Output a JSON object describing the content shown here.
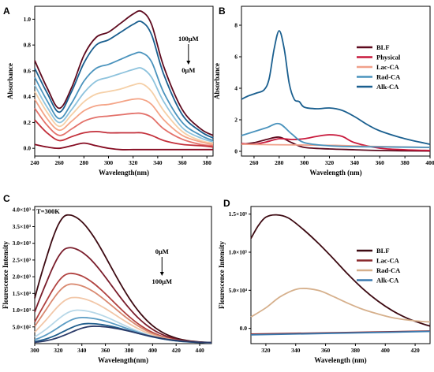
{
  "chart_data": [
    {
      "panel": "A",
      "type": "line",
      "xlabel": "Wavelength(nm)",
      "ylabel": "Absorbance",
      "xlim": [
        240,
        385
      ],
      "ylim": [
        -0.06,
        1.1
      ],
      "xticks": [
        240,
        260,
        280,
        300,
        320,
        340,
        360,
        380
      ],
      "yticks": [
        0.0,
        0.2,
        0.4,
        0.6,
        0.8,
        1.0
      ],
      "ytick_labels": [
        "0.0",
        "0.2",
        "0.4",
        "0.6",
        "0.8",
        "1.0"
      ],
      "annotation_top": "100μM",
      "annotation_bottom": "0μM",
      "x": [
        240,
        250,
        260,
        270,
        280,
        290,
        300,
        310,
        320,
        327,
        335,
        345,
        360,
        375,
        385
      ],
      "series": [
        {
          "color": "#5e0a1e",
          "values": [
            0.68,
            0.47,
            0.31,
            0.47,
            0.72,
            0.86,
            0.9,
            0.97,
            1.04,
            1.06,
            0.96,
            0.63,
            0.3,
            0.15,
            0.1
          ]
        },
        {
          "color": "#1a5f8f",
          "values": [
            0.62,
            0.43,
            0.28,
            0.44,
            0.66,
            0.8,
            0.84,
            0.9,
            0.96,
            0.98,
            0.88,
            0.57,
            0.26,
            0.13,
            0.08
          ]
        },
        {
          "color": "#4a93bd",
          "values": [
            0.55,
            0.37,
            0.23,
            0.35,
            0.52,
            0.62,
            0.65,
            0.69,
            0.73,
            0.74,
            0.67,
            0.43,
            0.2,
            0.1,
            0.06
          ]
        },
        {
          "color": "#8ec3dd",
          "values": [
            0.49,
            0.32,
            0.2,
            0.3,
            0.43,
            0.52,
            0.55,
            0.58,
            0.61,
            0.62,
            0.55,
            0.36,
            0.16,
            0.08,
            0.05
          ]
        },
        {
          "color": "#f5d0a8",
          "values": [
            0.44,
            0.28,
            0.17,
            0.26,
            0.36,
            0.42,
            0.44,
            0.46,
            0.49,
            0.5,
            0.44,
            0.29,
            0.13,
            0.06,
            0.04
          ]
        },
        {
          "color": "#f4a487",
          "values": [
            0.38,
            0.23,
            0.14,
            0.21,
            0.29,
            0.33,
            0.34,
            0.36,
            0.38,
            0.38,
            0.34,
            0.22,
            0.1,
            0.05,
            0.03
          ]
        },
        {
          "color": "#e3716a",
          "values": [
            0.31,
            0.18,
            0.1,
            0.15,
            0.21,
            0.24,
            0.25,
            0.26,
            0.27,
            0.27,
            0.24,
            0.15,
            0.07,
            0.03,
            0.02
          ]
        },
        {
          "color": "#c3303b",
          "values": [
            0.22,
            0.12,
            0.06,
            0.09,
            0.12,
            0.13,
            0.12,
            0.12,
            0.12,
            0.12,
            0.1,
            0.06,
            0.03,
            0.02,
            0.01
          ]
        },
        {
          "color": "#860c22",
          "values": [
            0.03,
            0.01,
            0.0,
            0.02,
            0.04,
            0.02,
            0.0,
            -0.01,
            -0.01,
            -0.01,
            -0.01,
            -0.01,
            -0.01,
            -0.01,
            -0.01
          ]
        }
      ]
    },
    {
      "panel": "B",
      "type": "line",
      "xlabel": "Wavelength (nm)",
      "ylabel": "Absorbance",
      "xlim": [
        250,
        400
      ],
      "ylim": [
        -0.3,
        9.2
      ],
      "xticks": [
        260,
        280,
        300,
        320,
        340,
        360,
        380,
        400
      ],
      "yticks": [
        0,
        2,
        4,
        6,
        8
      ],
      "legend_position": "right",
      "series": [
        {
          "name": "BLF",
          "color": "#5e0a1e",
          "x": [
            250,
            260,
            270,
            280,
            290,
            300,
            320,
            340,
            360,
            400
          ],
          "values": [
            0.45,
            0.55,
            0.75,
            0.9,
            0.55,
            0.25,
            0.15,
            0.1,
            0.05,
            0.02
          ]
        },
        {
          "name": "Physical",
          "color": "#c8193c",
          "x": [
            250,
            260,
            270,
            280,
            290,
            300,
            310,
            320,
            330,
            340,
            360,
            380,
            400
          ],
          "values": [
            0.5,
            0.45,
            0.6,
            0.8,
            0.75,
            0.8,
            0.95,
            1.05,
            0.95,
            0.55,
            0.2,
            0.1,
            0.05
          ]
        },
        {
          "name": "Lac-CA",
          "color": "#f0a08a",
          "x": [
            250,
            275,
            300,
            325,
            350,
            400
          ],
          "values": [
            0.45,
            0.42,
            0.4,
            0.38,
            0.32,
            0.25
          ]
        },
        {
          "name": "Rad-CA",
          "color": "#4a93bd",
          "x": [
            250,
            260,
            270,
            280,
            290,
            300,
            320,
            340,
            360,
            400
          ],
          "values": [
            1.0,
            1.25,
            1.5,
            1.75,
            1.1,
            0.55,
            0.35,
            0.3,
            0.28,
            0.25
          ]
        },
        {
          "name": "Alk-CA",
          "color": "#1a5f8f",
          "x": [
            250,
            255,
            262,
            268,
            272,
            276,
            280,
            284,
            288,
            292,
            296,
            300,
            310,
            320,
            330,
            340,
            350,
            360,
            380,
            400
          ],
          "values": [
            3.3,
            3.5,
            3.7,
            3.9,
            4.6,
            6.5,
            7.65,
            6.5,
            4.3,
            3.3,
            3.15,
            2.8,
            2.7,
            2.75,
            2.6,
            2.2,
            1.7,
            1.3,
            0.8,
            0.45
          ]
        }
      ]
    },
    {
      "panel": "C",
      "type": "line",
      "title": "T=300K",
      "xlabel": "Wavelength(nm)",
      "ylabel": "Flourescence Intensity",
      "xlim": [
        300,
        450
      ],
      "ylim": [
        0,
        4100
      ],
      "xticks": [
        300,
        320,
        340,
        360,
        380,
        400,
        420,
        440
      ],
      "yticks": [
        500,
        1000,
        1500,
        2000,
        2500,
        3000,
        3500,
        4000
      ],
      "ytick_labels": [
        "5.0×10²",
        "1.0×10³",
        "1.5×10³",
        "2.0×10³",
        "2.5×10³",
        "3.0×10³",
        "3.5×10³",
        "4.0×10³"
      ],
      "annotation_top": "0μM",
      "annotation_bottom": "100μM",
      "peaks": [
        {
          "color": "#3d0a12",
          "peak_x": 328,
          "peak_y": 3850
        },
        {
          "color": "#7a1e2c",
          "peak_x": 329,
          "peak_y": 2870
        },
        {
          "color": "#b0413f",
          "peak_x": 330,
          "peak_y": 2100
        },
        {
          "color": "#d98970",
          "peak_x": 331,
          "peak_y": 1780
        },
        {
          "color": "#f2c7a8",
          "peak_x": 333,
          "peak_y": 1380
        },
        {
          "color": "#b8d8e8",
          "peak_x": 336,
          "peak_y": 1000
        },
        {
          "color": "#5b9cc4",
          "peak_x": 340,
          "peak_y": 780
        },
        {
          "color": "#1f5d8c",
          "peak_x": 345,
          "peak_y": 600
        },
        {
          "color": "#2a3a68",
          "peak_x": 350,
          "peak_y": 520
        }
      ],
      "baseline": 20
    },
    {
      "panel": "D",
      "type": "line",
      "xlabel": "Wavelength (nm)",
      "ylabel": "Flourescence Intensity",
      "xlim": [
        310,
        430
      ],
      "ylim": [
        -20000,
        160000
      ],
      "xticks": [
        320,
        340,
        360,
        380,
        400,
        420
      ],
      "yticks": [
        0,
        50000,
        100000,
        150000
      ],
      "ytick_labels": [
        "0.0",
        "5.0×10⁴",
        "1.0×10⁵",
        "1.5×10⁵"
      ],
      "legend_position": "right",
      "series": [
        {
          "name": "BLF",
          "color": "#3d0a12",
          "x": [
            310,
            315,
            320,
            327,
            335,
            345,
            355,
            365,
            375,
            385,
            395,
            405,
            415,
            425,
            430
          ],
          "values": [
            118000,
            135000,
            146000,
            149000,
            145000,
            130000,
            112000,
            92000,
            71000,
            52000,
            36000,
            23000,
            13000,
            6000,
            3000
          ]
        },
        {
          "name": "Lac-CA",
          "color": "#8a2a2e",
          "x": [
            310,
            430
          ],
          "values": [
            -7500,
            -3500
          ]
        },
        {
          "name": "Rad-CA",
          "color": "#d6b08c",
          "x": [
            310,
            320,
            330,
            342,
            355,
            365,
            375,
            385,
            395,
            405,
            415,
            425,
            430
          ],
          "values": [
            15000,
            27000,
            42000,
            52000,
            50000,
            42000,
            33000,
            25000,
            19000,
            14000,
            11000,
            9000,
            8500
          ]
        },
        {
          "name": "Alk-CA",
          "color": "#3a7ab0",
          "x": [
            310,
            430
          ],
          "values": [
            -8500,
            -4000
          ]
        }
      ]
    }
  ],
  "panel_letters": [
    "A",
    "B",
    "C",
    "D"
  ]
}
